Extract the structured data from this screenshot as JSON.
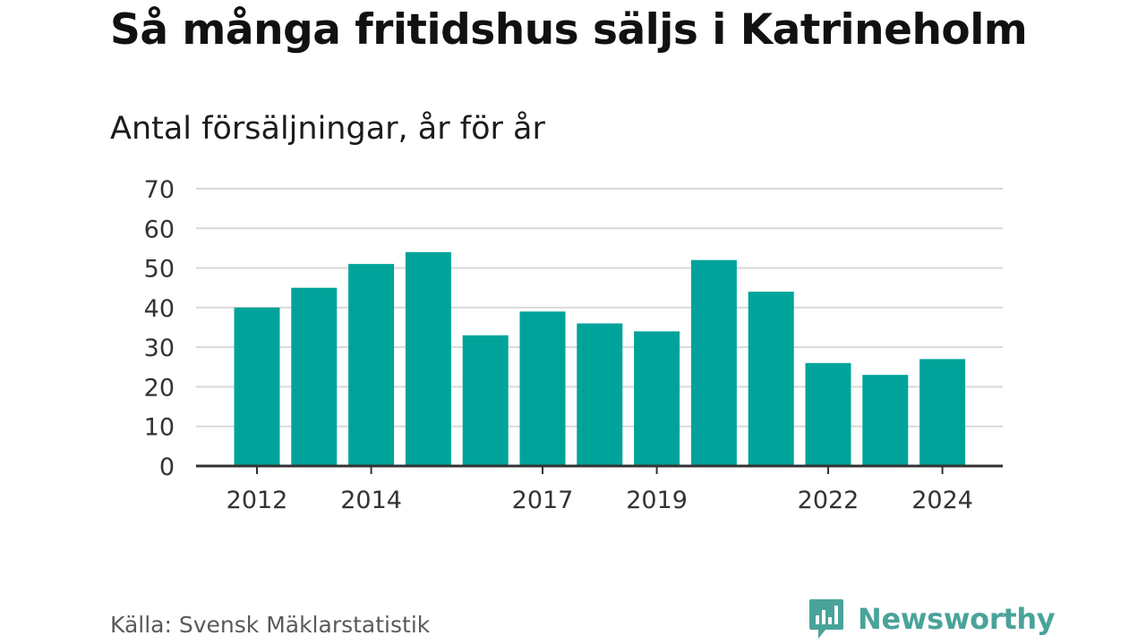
{
  "chart_data": {
    "type": "bar",
    "title": "Så många fritidshus säljs i Katrineholm",
    "subtitle": "Antal försäljningar, år för år",
    "categories": [
      "2012",
      "2013",
      "2014",
      "2015",
      "2016",
      "2017",
      "2018",
      "2019",
      "2020",
      "2021",
      "2022",
      "2023",
      "2024"
    ],
    "values": [
      40,
      45,
      51,
      54,
      33,
      39,
      36,
      34,
      52,
      44,
      26,
      23,
      27
    ],
    "x_tick_labels": [
      "2012",
      "2014",
      "2017",
      "2019",
      "2022",
      "2024"
    ],
    "y_ticks": [
      0,
      10,
      20,
      30,
      40,
      50,
      60,
      70
    ],
    "ylim": [
      0,
      70
    ],
    "grid": true,
    "bar_color": "#00a39a",
    "source": "Källa: Svensk Mäklarstatistik"
  },
  "brand": {
    "name": "Newsworthy",
    "color": "#4aa39a",
    "icon": "bar-chart-speech-bubble-icon"
  }
}
